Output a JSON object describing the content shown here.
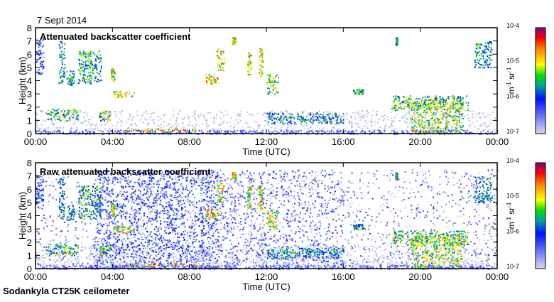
{
  "date": "7 Sept 2014",
  "footer": "Sodankyla CT25K ceilometer",
  "chart_data": [
    {
      "type": "heatmap",
      "title": "Attenuated backscatter coefficient",
      "xlabel": "Time (UTC)",
      "ylabel": "Height (km)",
      "xticks": [
        "00:00",
        "04:00",
        "08:00",
        "12:00",
        "16:00",
        "20:00",
        "00:00"
      ],
      "yticks": [
        "0",
        "1",
        "2",
        "3",
        "4",
        "5",
        "6",
        "7",
        "8"
      ],
      "xlim_hours": [
        0,
        24
      ],
      "ylim_km": [
        0,
        8
      ],
      "colorbar": {
        "label": "m-1 sr-1",
        "ticks": [
          "10-7",
          "10-6",
          "10-5",
          "10-4"
        ],
        "range_log10": [
          -7,
          -4
        ]
      },
      "features": [
        {
          "t": [
            0.0,
            0.4
          ],
          "h": [
            4.5,
            7.2
          ],
          "log10": -6.2
        },
        {
          "t": [
            1.2,
            1.5
          ],
          "h": [
            3.8,
            7.0
          ],
          "log10": -5.8
        },
        {
          "t": [
            1.6,
            2.0
          ],
          "h": [
            3.7,
            4.8
          ],
          "log10": -5.8
        },
        {
          "t": [
            2.2,
            3.4
          ],
          "h": [
            3.8,
            6.3
          ],
          "log10": -5.6
        },
        {
          "t": [
            0.5,
            2.2
          ],
          "h": [
            1.0,
            1.9
          ],
          "log10": -5.5
        },
        {
          "t": [
            3.3,
            3.9
          ],
          "h": [
            1.0,
            1.8
          ],
          "log10": -5.4
        },
        {
          "t": [
            3.9,
            4.1
          ],
          "h": [
            4.0,
            5.0
          ],
          "log10": -5.1
        },
        {
          "t": [
            4.0,
            5.1
          ],
          "h": [
            2.7,
            3.3
          ],
          "log10": -5.1
        },
        {
          "t": [
            4.5,
            8.5
          ],
          "h": [
            0.2,
            0.4
          ],
          "log10": -4.8
        },
        {
          "t": [
            8.8,
            9.5
          ],
          "h": [
            3.8,
            4.5
          ],
          "log10": -4.9
        },
        {
          "t": [
            9.4,
            9.8
          ],
          "h": [
            4.8,
            6.5
          ],
          "log10": -5.0
        },
        {
          "t": [
            10.2,
            10.4
          ],
          "h": [
            6.8,
            7.3
          ],
          "log10": -5.0
        },
        {
          "t": [
            11.0,
            11.2
          ],
          "h": [
            4.5,
            6.2
          ],
          "log10": -5.1
        },
        {
          "t": [
            11.6,
            11.8
          ],
          "h": [
            4.4,
            6.5
          ],
          "log10": -5.0
        },
        {
          "t": [
            12.0,
            12.6
          ],
          "h": [
            3.0,
            4.5
          ],
          "log10": -5.2
        },
        {
          "t": [
            12.0,
            16.0
          ],
          "h": [
            0.8,
            1.6
          ],
          "log10": -5.8
        },
        {
          "t": [
            16.5,
            17.0
          ],
          "h": [
            3.0,
            3.4
          ],
          "log10": -5.5
        },
        {
          "t": [
            18.7,
            18.8
          ],
          "h": [
            6.7,
            7.3
          ],
          "log10": -5.8
        },
        {
          "t": [
            18.5,
            22.5
          ],
          "h": [
            1.8,
            2.9
          ],
          "log10": -5.4
        },
        {
          "t": [
            19.5,
            22.2
          ],
          "h": [
            0.0,
            2.5
          ],
          "log10": -5.2
        },
        {
          "t": [
            22.8,
            23.7
          ],
          "h": [
            5.0,
            7.0
          ],
          "log10": -5.8
        },
        {
          "t": [
            0.0,
            24.0
          ],
          "h": [
            0.0,
            1.8
          ],
          "log10": -6.9
        },
        {
          "t": [
            0.0,
            24.0
          ],
          "h": [
            0.0,
            0.3
          ],
          "log10": -6.4
        }
      ]
    },
    {
      "type": "heatmap",
      "title": "Raw attenuated backscatter coefficient",
      "xlabel": "Time (UTC)",
      "ylabel": "Height (km)",
      "xticks": [
        "00:00",
        "04:00",
        "08:00",
        "12:00",
        "16:00",
        "20:00",
        "00:00"
      ],
      "yticks": [
        "0",
        "1",
        "2",
        "3",
        "4",
        "5",
        "6",
        "7",
        "8"
      ],
      "xlim_hours": [
        0,
        24
      ],
      "ylim_km": [
        0,
        8
      ],
      "colorbar": {
        "label": "m-1 sr-1",
        "ticks": [
          "10-7",
          "10-6",
          "10-5",
          "10-4"
        ],
        "range_log10": [
          -7,
          -4
        ]
      },
      "noise": {
        "t": [
          0.0,
          24.0
        ],
        "h": [
          0.0,
          7.5
        ],
        "log10": -6.6,
        "dense_t": [
          3.0,
          9.5
        ]
      }
    }
  ]
}
